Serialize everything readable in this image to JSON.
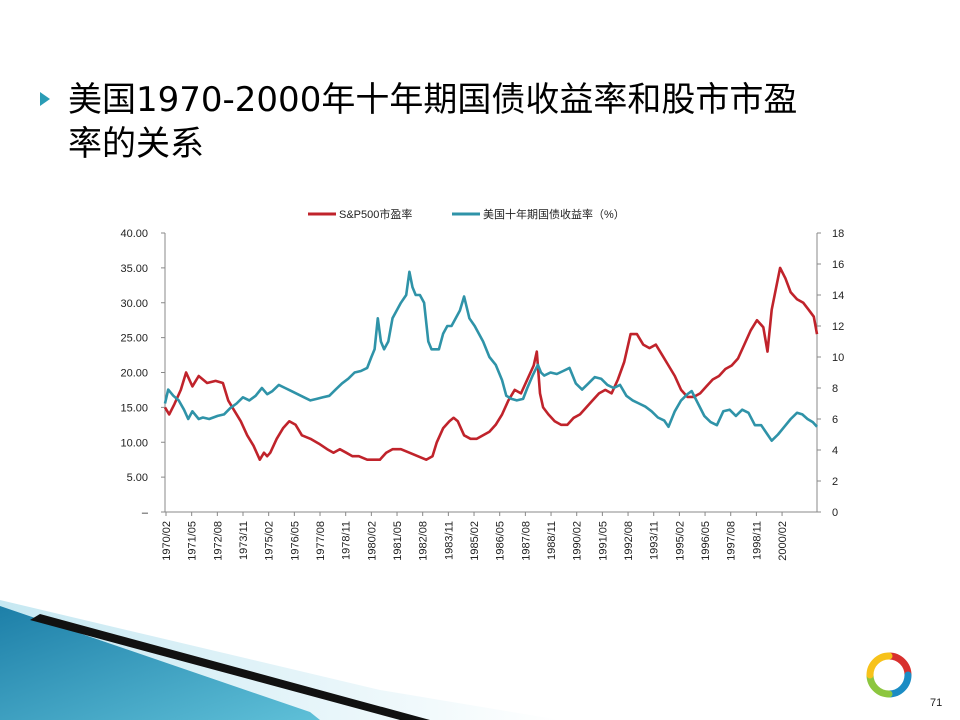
{
  "slide": {
    "title_line1": "美国1970-2000年十年期国债收益率和股市市盈",
    "title_line2": "率的关系",
    "page_number": "71",
    "accent_color": "#2a9cb5"
  },
  "chart_data": {
    "type": "line",
    "title": "",
    "legend_position": "top",
    "xlabel": "",
    "ylabel_left": "",
    "ylabel_right": "",
    "x_tick_labels": [
      "1970/02",
      "1971/05",
      "1972/08",
      "1973/11",
      "1975/02",
      "1976/05",
      "1977/08",
      "1978/11",
      "1980/02",
      "1981/05",
      "1982/08",
      "1983/11",
      "1985/02",
      "1986/05",
      "1987/08",
      "1988/11",
      "1990/02",
      "1991/05",
      "1992/08",
      "1993/11",
      "1995/02",
      "1996/05",
      "1997/08",
      "1998/11",
      "2000/02"
    ],
    "x_range": [
      1970.0,
      2000.95
    ],
    "y_left": {
      "range": [
        0,
        40
      ],
      "tick_labels": [
        "–",
        "5.00",
        "10.00",
        "15.00",
        "20.00",
        "25.00",
        "30.00",
        "35.00",
        "40.00"
      ]
    },
    "y_right": {
      "range": [
        0,
        18
      ],
      "tick_labels": [
        "0",
        "2",
        "4",
        "6",
        "8",
        "10",
        "12",
        "14",
        "16",
        "18"
      ]
    },
    "grid": false,
    "series": [
      {
        "name": "S&P500市盈率",
        "axis": "left",
        "color": "#c0232b",
        "x": [
          1970.0,
          1970.2,
          1970.45,
          1970.75,
          1971.0,
          1971.3,
          1971.6,
          1972.0,
          1972.4,
          1972.75,
          1973.0,
          1973.3,
          1973.6,
          1973.9,
          1974.2,
          1974.5,
          1974.7,
          1974.85,
          1975.0,
          1975.3,
          1975.6,
          1975.9,
          1976.2,
          1976.5,
          1976.9,
          1977.3,
          1977.7,
          1978.0,
          1978.3,
          1978.6,
          1978.9,
          1979.2,
          1979.6,
          1980.0,
          1980.2,
          1980.5,
          1980.8,
          1981.2,
          1981.6,
          1982.0,
          1982.4,
          1982.7,
          1982.9,
          1983.2,
          1983.5,
          1983.7,
          1983.9,
          1984.2,
          1984.5,
          1984.8,
          1985.1,
          1985.4,
          1985.7,
          1986.0,
          1986.3,
          1986.6,
          1986.9,
          1987.2,
          1987.5,
          1987.65,
          1987.8,
          1987.95,
          1988.2,
          1988.5,
          1988.8,
          1989.1,
          1989.4,
          1989.7,
          1990.0,
          1990.3,
          1990.6,
          1990.9,
          1991.2,
          1991.5,
          1991.8,
          1992.1,
          1992.4,
          1992.7,
          1993.0,
          1993.3,
          1993.6,
          1993.9,
          1994.2,
          1994.5,
          1994.8,
          1995.1,
          1995.4,
          1995.7,
          1996.0,
          1996.3,
          1996.6,
          1996.9,
          1997.2,
          1997.5,
          1997.8,
          1998.1,
          1998.4,
          1998.6,
          1998.8,
          1999.0,
          1999.2,
          1999.45,
          1999.7,
          2000.0,
          2000.3,
          2000.55,
          2000.8,
          2000.95
        ],
        "values": [
          15.0,
          14.0,
          15.5,
          17.5,
          20.0,
          18.0,
          19.5,
          18.5,
          18.8,
          18.5,
          16.0,
          14.5,
          13.0,
          11.0,
          9.5,
          7.5,
          8.5,
          8.0,
          8.5,
          10.5,
          12.0,
          13.0,
          12.5,
          11.0,
          10.5,
          9.8,
          9.0,
          8.5,
          9.0,
          8.5,
          8.0,
          8.0,
          7.5,
          7.5,
          7.5,
          8.5,
          9.0,
          9.0,
          8.5,
          8.0,
          7.5,
          8.0,
          10.0,
          12.0,
          13.0,
          13.5,
          13.0,
          11.0,
          10.5,
          10.5,
          11.0,
          11.5,
          12.5,
          14.0,
          16.0,
          17.5,
          17.0,
          19.0,
          21.0,
          23.0,
          17.0,
          15.0,
          14.0,
          13.0,
          12.5,
          12.5,
          13.5,
          14.0,
          15.0,
          16.0,
          17.0,
          17.5,
          17.0,
          19.0,
          21.5,
          25.5,
          25.5,
          24.0,
          23.5,
          24.0,
          22.5,
          21.0,
          19.5,
          17.5,
          16.5,
          16.5,
          17.0,
          18.0,
          19.0,
          19.5,
          20.5,
          21.0,
          22.0,
          24.0,
          26.0,
          27.5,
          26.5,
          23.0,
          29.0,
          32.0,
          35.0,
          33.5,
          31.5,
          30.5,
          30.0,
          29.0,
          28.0,
          25.5
        ]
      },
      {
        "name": "美国十年期国债收益率（%）",
        "axis": "right",
        "color": "#2f93a8",
        "x": [
          1970.0,
          1970.15,
          1970.4,
          1970.65,
          1970.9,
          1971.1,
          1971.3,
          1971.6,
          1971.8,
          1972.1,
          1972.5,
          1972.8,
          1973.1,
          1973.4,
          1973.7,
          1974.0,
          1974.3,
          1974.6,
          1974.85,
          1975.1,
          1975.4,
          1975.7,
          1976.0,
          1976.3,
          1976.6,
          1976.9,
          1977.2,
          1977.5,
          1977.8,
          1978.1,
          1978.4,
          1978.7,
          1979.0,
          1979.3,
          1979.6,
          1979.8,
          1979.95,
          1980.1,
          1980.25,
          1980.4,
          1980.6,
          1980.8,
          1981.0,
          1981.2,
          1981.45,
          1981.6,
          1981.75,
          1981.9,
          1982.1,
          1982.3,
          1982.5,
          1982.65,
          1982.8,
          1983.0,
          1983.2,
          1983.4,
          1983.6,
          1983.8,
          1984.0,
          1984.2,
          1984.45,
          1984.7,
          1984.9,
          1985.1,
          1985.4,
          1985.7,
          1986.0,
          1986.2,
          1986.45,
          1986.7,
          1987.0,
          1987.2,
          1987.45,
          1987.7,
          1987.85,
          1988.0,
          1988.3,
          1988.6,
          1988.9,
          1989.2,
          1989.5,
          1989.8,
          1990.1,
          1990.4,
          1990.7,
          1991.0,
          1991.3,
          1991.6,
          1991.9,
          1992.2,
          1992.5,
          1992.8,
          1993.1,
          1993.4,
          1993.7,
          1993.9,
          1994.2,
          1994.5,
          1994.8,
          1995.0,
          1995.3,
          1995.6,
          1995.9,
          1996.2,
          1996.5,
          1996.8,
          1997.1,
          1997.4,
          1997.7,
          1998.0,
          1998.3,
          1998.6,
          1998.8,
          1999.1,
          1999.4,
          1999.7,
          2000.0,
          2000.25,
          2000.5,
          2000.75,
          2000.95
        ],
        "values": [
          7.0,
          7.9,
          7.5,
          7.2,
          6.6,
          6.0,
          6.5,
          6.0,
          6.1,
          6.0,
          6.2,
          6.3,
          6.7,
          7.0,
          7.4,
          7.2,
          7.5,
          8.0,
          7.6,
          7.8,
          8.2,
          8.0,
          7.8,
          7.6,
          7.4,
          7.2,
          7.3,
          7.4,
          7.5,
          7.9,
          8.3,
          8.6,
          9.0,
          9.1,
          9.3,
          10.0,
          10.5,
          12.5,
          11.0,
          10.5,
          11.0,
          12.5,
          13.0,
          13.5,
          14.0,
          15.5,
          14.5,
          14.0,
          14.0,
          13.5,
          11.0,
          10.5,
          10.5,
          10.5,
          11.5,
          12.0,
          12.0,
          12.5,
          13.0,
          13.9,
          12.5,
          12.0,
          11.5,
          11.0,
          10.0,
          9.5,
          8.5,
          7.5,
          7.3,
          7.2,
          7.3,
          8.0,
          8.8,
          9.5,
          9.0,
          8.8,
          9.0,
          8.9,
          9.1,
          9.3,
          8.3,
          7.9,
          8.3,
          8.7,
          8.6,
          8.2,
          8.0,
          8.2,
          7.5,
          7.2,
          7.0,
          6.8,
          6.5,
          6.1,
          5.9,
          5.5,
          6.5,
          7.2,
          7.6,
          7.8,
          7.0,
          6.2,
          5.8,
          5.6,
          6.5,
          6.6,
          6.2,
          6.6,
          6.4,
          5.6,
          5.6,
          5.0,
          4.6,
          5.0,
          5.5,
          6.0,
          6.4,
          6.3,
          6.0,
          5.8,
          5.5
        ]
      }
    ]
  }
}
